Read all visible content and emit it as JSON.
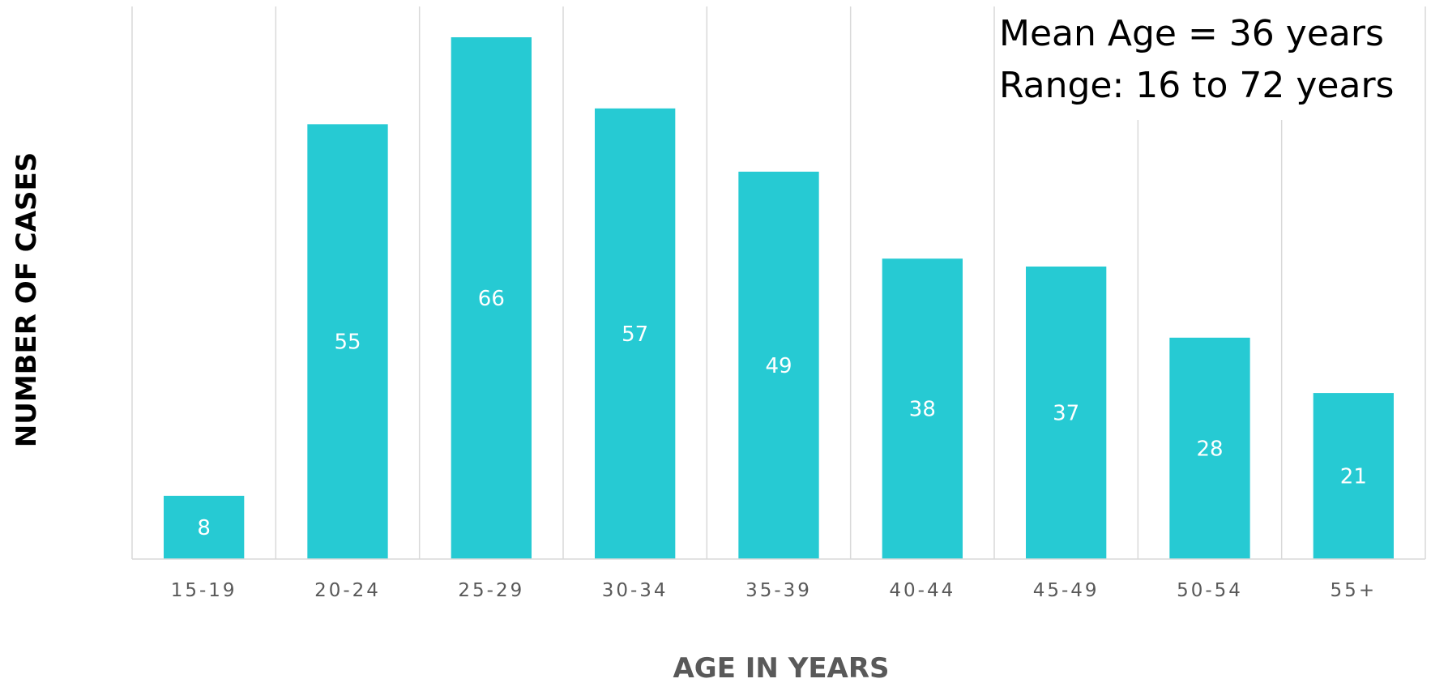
{
  "chart_data": {
    "type": "bar",
    "categories": [
      "15-19",
      "20-24",
      "25-29",
      "30-34",
      "35-39",
      "40-44",
      "45-49",
      "50-54",
      "55+"
    ],
    "values": [
      8,
      55,
      66,
      57,
      49,
      38,
      37,
      28,
      21
    ],
    "xlabel": "AGE IN YEARS",
    "ylabel": "NUMBER OF CASES",
    "ylim": [
      0,
      70
    ],
    "grid": true,
    "data_labels": true,
    "annotations": [
      "Mean Age = 36 years",
      "Range: 16 to 72 years"
    ]
  },
  "colors": {
    "bar": "#26cad3",
    "grid": "#d9d9d9",
    "tick_label": "#595959",
    "x_title": "#595959",
    "y_title": "#000000",
    "value_label": "#ffffff"
  }
}
